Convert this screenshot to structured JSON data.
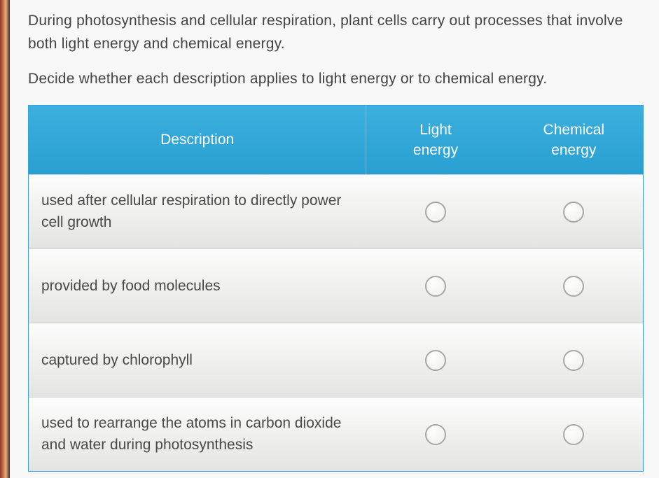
{
  "intro": {
    "p1": "During photosynthesis and cellular respiration, plant cells carry out processes that involve both light energy and chemical energy.",
    "p2": "Decide whether each description applies to light energy or to chemical energy."
  },
  "columns": {
    "desc": "Description",
    "col1_line1": "Light",
    "col1_line2": "energy",
    "col2_line1": "Chemical",
    "col2_line2": "energy"
  },
  "rows": [
    {
      "desc": "used after cellular respiration to directly power cell growth"
    },
    {
      "desc": "provided by food molecules"
    },
    {
      "desc": "captured by chlorophyll"
    },
    {
      "desc": "used to rearrange the atoms in carbon dioxide and water during photosynthesis"
    }
  ],
  "colors": {
    "header_bg": "#2ba6d6",
    "header_text": "#ffffff",
    "body_text": "#494949",
    "page_bg": "#f7f8f7",
    "border": "#3aa0d8",
    "radio_border": "#a8a8a6"
  }
}
